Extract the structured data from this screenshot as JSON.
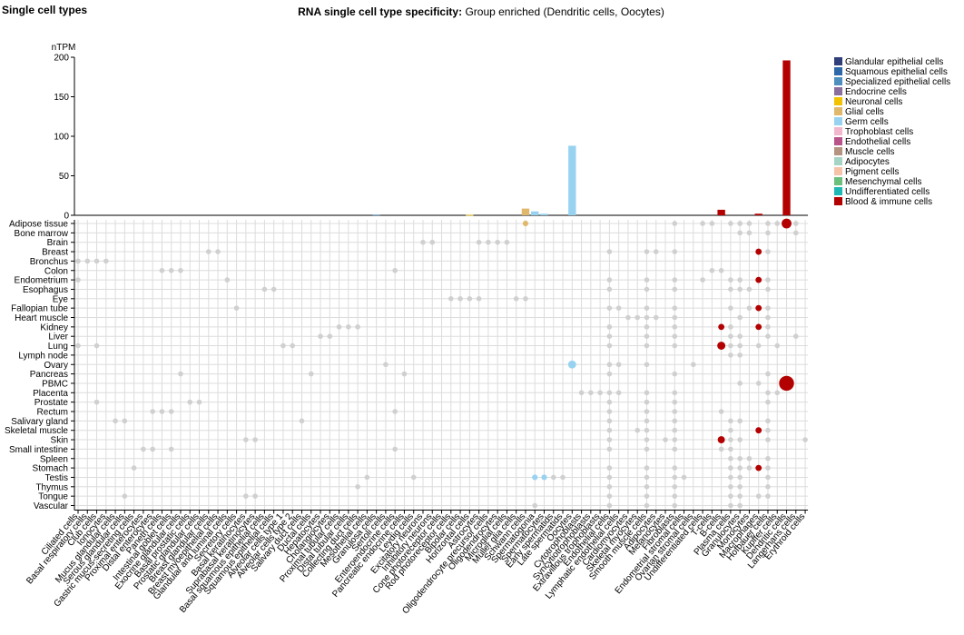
{
  "page_title": "Single cell types",
  "chart_title_bold": "RNA single cell type specificity:",
  "chart_title_rest": "Group enriched (Dendritic cells, Oocytes)",
  "colors": {
    "grid": "#dcdcdc",
    "dot": "#d0d0d0",
    "glandular": "#303f7a",
    "squamous": "#2e68a8",
    "specialized": "#4f8fc0",
    "endocrine": "#8a6f9e",
    "neuronal": "#f2c200",
    "glial": "#e0b86c",
    "germ": "#97d3f0",
    "trophoblast": "#f2b7cd",
    "endothelial": "#b8548a",
    "muscle": "#b49480",
    "adipocytes": "#a6d4c4",
    "pigment": "#f6c3a8",
    "mesenchymal": "#6cc07c",
    "undifferentiated": "#1fb9b5",
    "blood": "#b30000"
  },
  "chart_data": {
    "type": "bar",
    "ylabel": "nTPM",
    "ylim": [
      0,
      200
    ],
    "yticks": [
      0,
      50,
      100,
      150,
      200
    ],
    "legend_position": "right",
    "legend": [
      {
        "label": "Glandular epithelial cells",
        "group": "glandular"
      },
      {
        "label": "Squamous epithelial cells",
        "group": "squamous"
      },
      {
        "label": "Specialized epithelial cells",
        "group": "specialized"
      },
      {
        "label": "Endocrine cells",
        "group": "endocrine"
      },
      {
        "label": "Neuronal cells",
        "group": "neuronal"
      },
      {
        "label": "Glial cells",
        "group": "glial"
      },
      {
        "label": "Germ cells",
        "group": "germ"
      },
      {
        "label": "Trophoblast cells",
        "group": "trophoblast"
      },
      {
        "label": "Endothelial cells",
        "group": "endothelial"
      },
      {
        "label": "Muscle cells",
        "group": "muscle"
      },
      {
        "label": "Adipocytes",
        "group": "adipocytes"
      },
      {
        "label": "Pigment cells",
        "group": "pigment"
      },
      {
        "label": "Mesenchymal cells",
        "group": "mesenchymal"
      },
      {
        "label": "Undifferentiated cells",
        "group": "undifferentiated"
      },
      {
        "label": "Blood & immune cells",
        "group": "blood"
      }
    ],
    "cell_types": [
      {
        "name": "Ciliated cells",
        "group": "specialized",
        "value": 0
      },
      {
        "name": "Basal respiratory cells",
        "group": "squamous",
        "value": 0
      },
      {
        "name": "Club cells",
        "group": "glandular",
        "value": 0
      },
      {
        "name": "Ionocytes",
        "group": "specialized",
        "value": 0
      },
      {
        "name": "Mucus glandular cells",
        "group": "glandular",
        "value": 0
      },
      {
        "name": "Serous glandular cells",
        "group": "glandular",
        "value": 0
      },
      {
        "name": "Gastric mucus-secreting cells",
        "group": "glandular",
        "value": 0
      },
      {
        "name": "Proximal enterocytes",
        "group": "glandular",
        "value": 0
      },
      {
        "name": "Distal enterocytes",
        "group": "glandular",
        "value": 0
      },
      {
        "name": "Paneth cells",
        "group": "glandular",
        "value": 0
      },
      {
        "name": "Intestinal goblet cells",
        "group": "glandular",
        "value": 0
      },
      {
        "name": "Exocrine glandular cells",
        "group": "glandular",
        "value": 0
      },
      {
        "name": "Basal prostatic cells",
        "group": "glandular",
        "value": 0
      },
      {
        "name": "Prostatic glandular cells",
        "group": "glandular",
        "value": 0
      },
      {
        "name": "Breast glandular cells",
        "group": "glandular",
        "value": 0
      },
      {
        "name": "Breast myoepithelial cells",
        "group": "glandular",
        "value": 0
      },
      {
        "name": "Glandular and luminal cells",
        "group": "glandular",
        "value": 0
      },
      {
        "name": "Secretory cells",
        "group": "glandular",
        "value": 0
      },
      {
        "name": "Basal keratinocytes",
        "group": "squamous",
        "value": 0
      },
      {
        "name": "Suprabasal keratinocytes",
        "group": "squamous",
        "value": 0
      },
      {
        "name": "Basal squamous epithelial cells",
        "group": "squamous",
        "value": 0
      },
      {
        "name": "Squamous epithelial cells",
        "group": "squamous",
        "value": 0
      },
      {
        "name": "Alveolar cells type 1",
        "group": "specialized",
        "value": 0
      },
      {
        "name": "Alveolar cells type 2",
        "group": "specialized",
        "value": 0
      },
      {
        "name": "Salivary duct cells",
        "group": "specialized",
        "value": 0
      },
      {
        "name": "Ductal cells",
        "group": "specialized",
        "value": 0
      },
      {
        "name": "Hepatocytes",
        "group": "specialized",
        "value": 0
      },
      {
        "name": "Cholangiocytes",
        "group": "specialized",
        "value": 0
      },
      {
        "name": "Proximal tubular cells",
        "group": "specialized",
        "value": 0
      },
      {
        "name": "Distal tubular cells",
        "group": "specialized",
        "value": 0
      },
      {
        "name": "Collecting duct cells",
        "group": "specialized",
        "value": 0
      },
      {
        "name": "Mesothelial cells",
        "group": "specialized",
        "value": 0
      },
      {
        "name": "Granulosa cells",
        "group": "specialized",
        "value": 0.8
      },
      {
        "name": "Sertoli cells",
        "group": "specialized",
        "value": 0
      },
      {
        "name": "Enteroendocrine cells",
        "group": "endocrine",
        "value": 0
      },
      {
        "name": "Pancreatic endocrine cells",
        "group": "endocrine",
        "value": 0
      },
      {
        "name": "Leydig cells",
        "group": "endocrine",
        "value": 0
      },
      {
        "name": "Excitatory neurons",
        "group": "neuronal",
        "value": 0
      },
      {
        "name": "Inhibitory neurons",
        "group": "neuronal",
        "value": 0
      },
      {
        "name": "Cone photoreceptor cells",
        "group": "neuronal",
        "value": 0
      },
      {
        "name": "Rod photoreceptor cells",
        "group": "neuronal",
        "value": 0
      },
      {
        "name": "Bipolar cells",
        "group": "neuronal",
        "value": 0
      },
      {
        "name": "Horizontal cells",
        "group": "neuronal",
        "value": 0.5
      },
      {
        "name": "Astrocytes",
        "group": "glial",
        "value": 0
      },
      {
        "name": "Oligodendrocyte precursor cells",
        "group": "glial",
        "value": 0
      },
      {
        "name": "Oligodendrocytes",
        "group": "glial",
        "value": 0
      },
      {
        "name": "Microglial cells",
        "group": "glial",
        "value": 0
      },
      {
        "name": "Müller glia cells",
        "group": "glial",
        "value": 0
      },
      {
        "name": "Schwann cells",
        "group": "glial",
        "value": 8.5
      },
      {
        "name": "Spermatogonia",
        "group": "germ",
        "value": 5
      },
      {
        "name": "Spermatocytes",
        "group": "germ",
        "value": 2
      },
      {
        "name": "Early spermatids",
        "group": "germ",
        "value": 0
      },
      {
        "name": "Late spermatids",
        "group": "germ",
        "value": 0
      },
      {
        "name": "Oocytes",
        "group": "germ",
        "value": 88
      },
      {
        "name": "Cytotrophoblasts",
        "group": "trophoblast",
        "value": 0
      },
      {
        "name": "Syncytiotrophoblasts",
        "group": "trophoblast",
        "value": 0
      },
      {
        "name": "Extravillous trophoblasts",
        "group": "trophoblast",
        "value": 0
      },
      {
        "name": "Endothelial cells",
        "group": "endothelial",
        "value": 0
      },
      {
        "name": "Lymphatic endothelial cells",
        "group": "endothelial",
        "value": 0
      },
      {
        "name": "Cardiomyocytes",
        "group": "muscle",
        "value": 0
      },
      {
        "name": "Skeletal myocytes",
        "group": "muscle",
        "value": 0
      },
      {
        "name": "Smooth muscle cells",
        "group": "muscle",
        "value": 0
      },
      {
        "name": "Adipocytes",
        "group": "adipocytes",
        "value": 0
      },
      {
        "name": "Melanocytes",
        "group": "pigment",
        "value": 0
      },
      {
        "name": "Fibroblasts",
        "group": "mesenchymal",
        "value": 0
      },
      {
        "name": "Endometrial stromal cells",
        "group": "mesenchymal",
        "value": 0
      },
      {
        "name": "Ovarian stromal cells",
        "group": "mesenchymal",
        "value": 0
      },
      {
        "name": "Undifferentiated cells",
        "group": "undifferentiated",
        "value": 0
      },
      {
        "name": "T-cells",
        "group": "blood",
        "value": 0
      },
      {
        "name": "B-cells",
        "group": "blood",
        "value": 7
      },
      {
        "name": "Plasma cells",
        "group": "blood",
        "value": 0
      },
      {
        "name": "Granulocytes",
        "group": "blood",
        "value": 0
      },
      {
        "name": "Monocytes",
        "group": "blood",
        "value": 0
      },
      {
        "name": "Macrophages",
        "group": "blood",
        "value": 2
      },
      {
        "name": "Hofbauer cells",
        "group": "blood",
        "value": 0
      },
      {
        "name": "Kupffer cells",
        "group": "blood",
        "value": 0
      },
      {
        "name": "Dendritic cells",
        "group": "blood",
        "value": 196
      },
      {
        "name": "Langerhans cells",
        "group": "blood",
        "value": 0
      },
      {
        "name": "Erythroid cells",
        "group": "blood",
        "value": 0
      }
    ],
    "tissues": [
      "Adipose tissue",
      "Bone marrow",
      "Brain",
      "Breast",
      "Bronchus",
      "Colon",
      "Endometrium",
      "Esophagus",
      "Eye",
      "Fallopian tube",
      "Heart muscle",
      "Kidney",
      "Liver",
      "Lung",
      "Lymph node",
      "Ovary",
      "Pancreas",
      "PBMC",
      "Placenta",
      "Prostate",
      "Rectum",
      "Salivary gland",
      "Skeletal muscle",
      "Skin",
      "Small intestine",
      "Spleen",
      "Stomach",
      "Testis",
      "Thymus",
      "Tongue",
      "Vascular"
    ],
    "dot_matrix_note": "grey dots mark cell types detected in a tissue; coloured dots are sized by nTPM",
    "dots_present": [
      [
        70,
        71,
        64,
        67,
        68,
        71,
        72,
        74,
        75,
        77
      ],
      [
        71,
        72,
        74,
        77,
        80
      ],
      [
        37,
        38,
        43,
        44,
        45,
        46
      ],
      [
        14,
        15,
        57,
        61,
        62,
        64,
        74
      ],
      [
        0,
        1,
        2,
        3
      ],
      [
        9,
        10,
        11,
        34,
        68,
        69
      ],
      [
        0,
        16,
        57,
        61,
        64,
        67,
        70,
        71,
        74
      ],
      [
        20,
        21,
        57,
        61,
        64,
        70,
        71,
        72,
        74
      ],
      [
        40,
        41,
        42,
        43,
        47,
        48
      ],
      [
        17,
        57,
        58,
        61,
        64,
        70,
        72,
        74
      ],
      [
        59,
        60,
        61,
        62,
        64,
        71,
        74
      ],
      [
        28,
        29,
        30,
        57,
        61,
        64,
        70,
        74
      ],
      [
        26,
        27,
        57,
        61,
        64,
        70,
        71,
        74,
        77,
        79
      ],
      [
        0,
        2,
        22,
        23,
        57,
        61,
        64,
        70,
        71,
        73,
        75
      ],
      [
        70,
        71
      ],
      [
        33,
        57,
        58,
        61,
        66
      ],
      [
        11,
        25,
        35,
        57,
        64,
        74
      ],
      [
        71,
        73
      ],
      [
        54,
        55,
        56,
        57,
        58,
        61,
        64,
        74,
        75
      ],
      [
        2,
        12,
        13,
        57,
        61,
        64,
        74
      ],
      [
        8,
        9,
        10,
        34,
        57,
        61,
        64,
        69
      ],
      [
        4,
        5,
        24,
        57,
        61,
        64,
        70,
        71,
        74
      ],
      [
        57,
        60,
        61,
        64,
        70,
        74
      ],
      [
        18,
        19,
        57,
        61,
        63,
        64,
        70,
        71,
        74,
        78
      ],
      [
        7,
        8,
        10,
        34,
        57,
        61,
        64,
        69,
        70
      ],
      [
        70,
        71,
        72,
        74
      ],
      [
        6,
        57,
        61,
        64,
        70,
        71,
        72,
        74
      ],
      [
        31,
        36,
        51,
        52,
        57,
        61,
        64,
        65,
        70,
        71,
        74
      ],
      [
        30,
        57,
        61,
        64,
        70,
        71,
        74
      ],
      [
        5,
        18,
        19,
        57,
        61,
        64,
        70,
        71,
        73,
        74
      ],
      [
        49,
        57,
        61,
        64,
        70,
        71
      ]
    ],
    "dots_highlight": [
      {
        "tissue": "Adipose tissue",
        "cell": "Dendritic cells",
        "group": "blood",
        "value": 60
      },
      {
        "tissue": "Breast",
        "cell": "Macrophages",
        "group": "blood",
        "value": 10
      },
      {
        "tissue": "Endometrium",
        "cell": "Macrophages",
        "group": "blood",
        "value": 10
      },
      {
        "tissue": "Fallopian tube",
        "cell": "Macrophages",
        "group": "blood",
        "value": 10
      },
      {
        "tissue": "Kidney",
        "cell": "Macrophages",
        "group": "blood",
        "value": 10
      },
      {
        "tissue": "Kidney",
        "cell": "B-cells",
        "group": "blood",
        "value": 10
      },
      {
        "tissue": "Lung",
        "cell": "B-cells",
        "group": "blood",
        "value": 30
      },
      {
        "tissue": "Ovary",
        "cell": "Oocytes",
        "group": "germ",
        "value": 30
      },
      {
        "tissue": "PBMC",
        "cell": "Dendritic cells",
        "group": "blood",
        "value": 196
      },
      {
        "tissue": "Skeletal muscle",
        "cell": "Macrophages",
        "group": "blood",
        "value": 10
      },
      {
        "tissue": "Skin",
        "cell": "B-cells",
        "group": "blood",
        "value": 20
      },
      {
        "tissue": "Stomach",
        "cell": "Macrophages",
        "group": "blood",
        "value": 10
      },
      {
        "tissue": "Testis",
        "cell": "Spermatogonia",
        "group": "germ",
        "value": 6
      },
      {
        "tissue": "Testis",
        "cell": "Spermatocytes",
        "group": "germ",
        "value": 6
      },
      {
        "tissue": "Adipose tissue",
        "cell": "Schwann cells",
        "group": "glial",
        "value": 6
      }
    ]
  }
}
